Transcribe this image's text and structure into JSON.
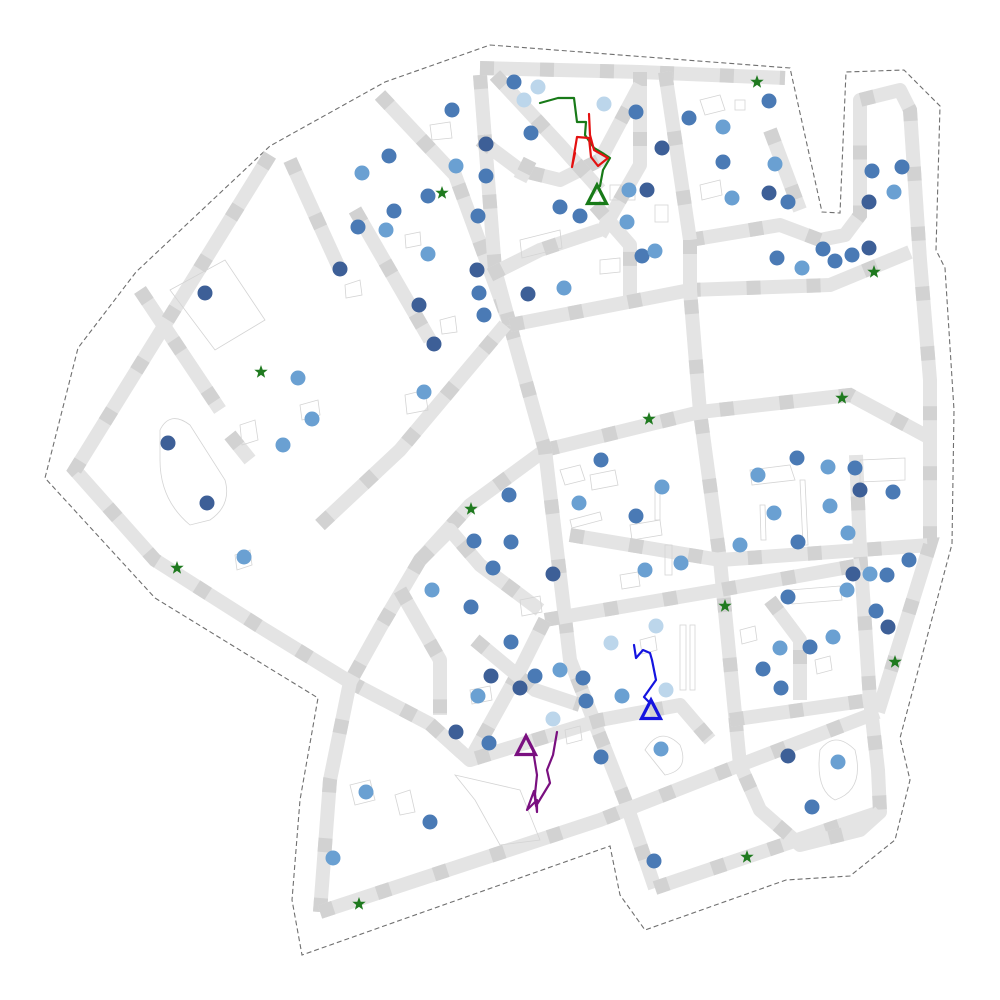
{
  "colors": {
    "road": "#e4e4e4",
    "boundary": "#6f6f6f",
    "star": "#1f7a1f",
    "node_dark": "#3d5f97",
    "node_mid": "#4a7ab5",
    "node_light": "#6aa0d2",
    "node_faint": "#bcd6eb",
    "agent_green": "#187a18",
    "agent_red": "#e41010",
    "agent_blue": "#1414e0",
    "agent_purple": "#7a1080"
  },
  "icons": {
    "goal": "star-icon",
    "agent": "triangle-icon",
    "node": "circle-icon"
  },
  "agents": [
    {
      "name": "green",
      "color": "#187a18"
    },
    {
      "name": "red",
      "color": "#e41010"
    },
    {
      "name": "blue",
      "color": "#1414e0"
    },
    {
      "name": "purple",
      "color": "#7a1080"
    }
  ]
}
